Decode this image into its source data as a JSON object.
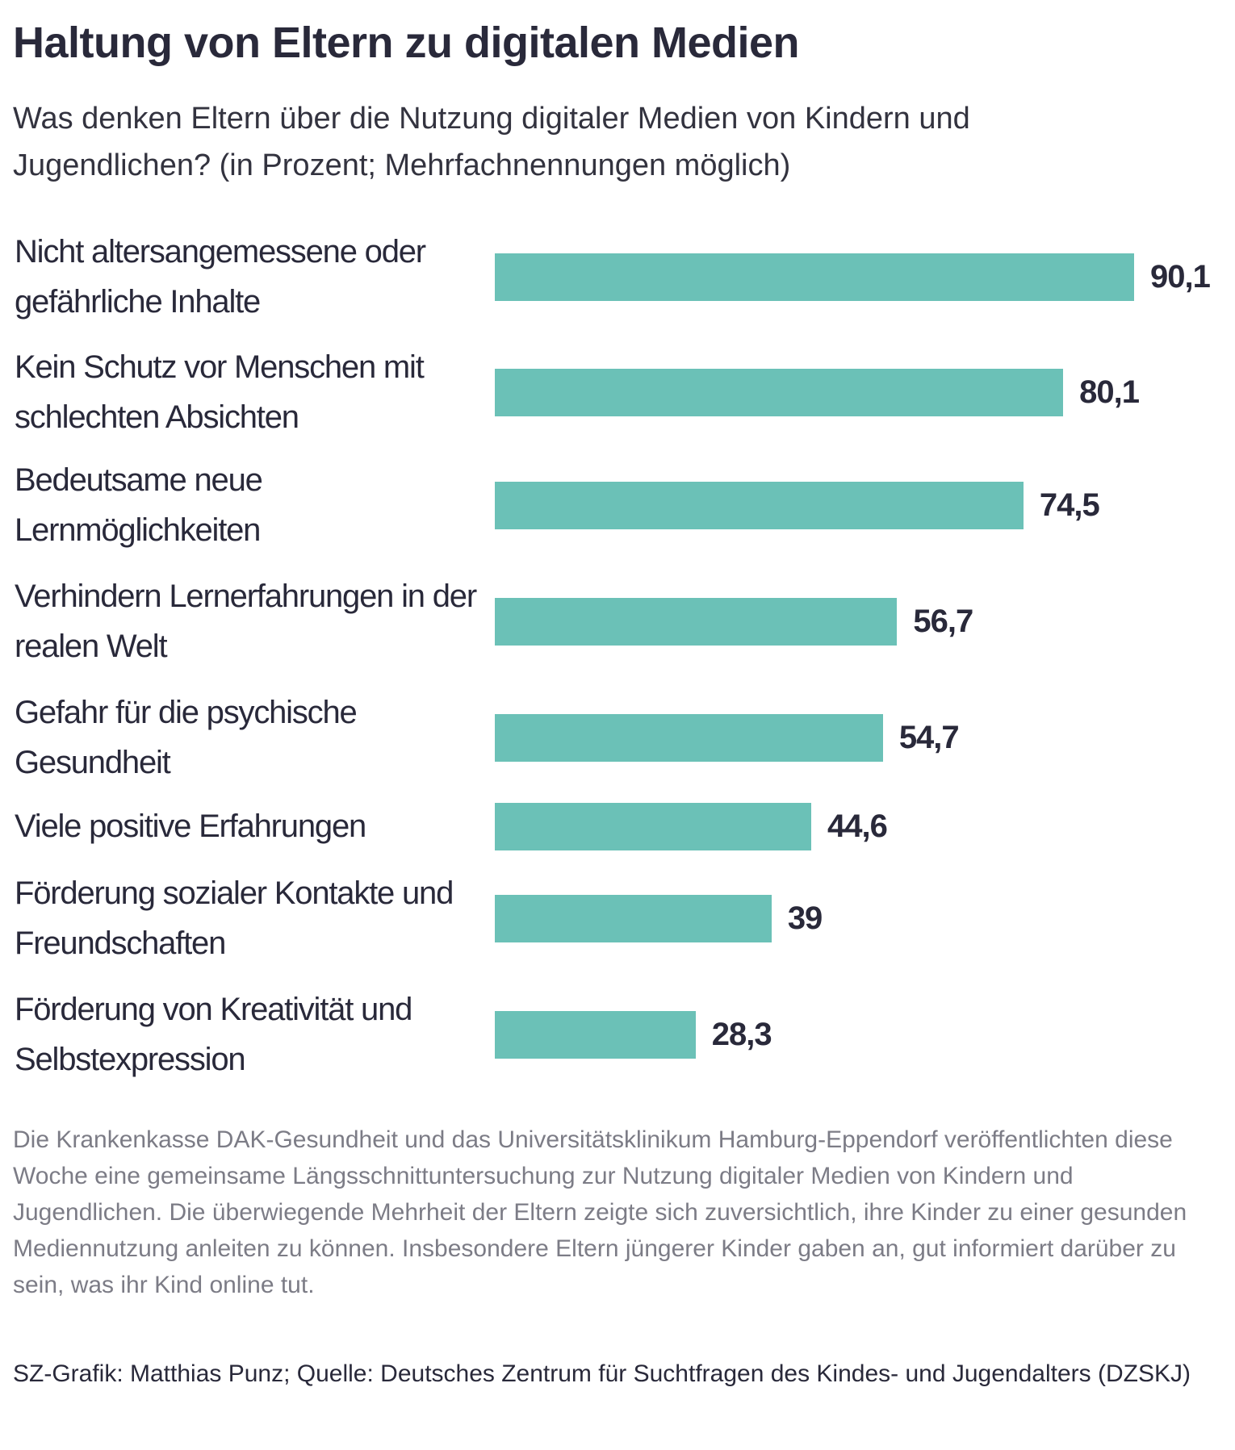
{
  "title": "Haltung von Eltern zu digitalen Medien",
  "subtitle": "Was denken Eltern über die Nutzung digitaler Medien von Kindern und Jugendlichen? (in Prozent; Mehrfachnennungen möglich)",
  "chart_data": {
    "type": "bar",
    "orientation": "horizontal",
    "categories": [
      "Nicht altersangemessene oder gefährliche Inhalte",
      "Kein Schutz vor Menschen mit schlechten Absichten",
      "Bedeutsame neue Lernmöglichkeiten",
      "Verhindern Lernerfahrungen in der realen Welt",
      "Gefahr für die psychische Gesundheit",
      "Viele positive Erfahrungen",
      "Förderung sozialer Kontakte und Freundschaften",
      "Förderung von Kreativität und Selbstexpression"
    ],
    "values": [
      90.1,
      80.1,
      74.5,
      56.7,
      54.7,
      44.6,
      39,
      28.3
    ],
    "value_labels": [
      "90,1",
      "80,1",
      "74,5",
      "56,7",
      "54,7",
      "44,6",
      "39",
      "28,3"
    ],
    "xlim": [
      0,
      100
    ],
    "grid": false,
    "bar_color": "#6bc1b7"
  },
  "note": "Die Krankenkasse DAK-Gesundheit und das Universitätsklinikum Hamburg-Eppendorf veröffentlichten diese Woche eine gemeinsame Längsschnittuntersuchung zur Nutzung digitaler Medien von Kindern und Jugendlichen. Die überwiegende Mehrheit der Eltern zeigte sich zuversichtlich, ihre Kinder zu einer gesunden Mediennutzung anleiten zu können. Insbesondere Eltern jüngerer Kinder gaben an, gut informiert darüber zu sein, was ihr Kind online tut.",
  "source": "SZ-Grafik: Matthias Punz; Quelle: Deutsches Zentrum für Suchtfragen des Kindes- und Jugendalters (DZSKJ)"
}
